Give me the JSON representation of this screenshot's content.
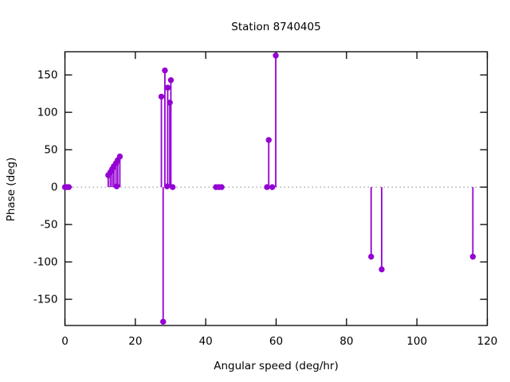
{
  "figure": {
    "background": "#ffffff"
  },
  "chart_data": {
    "type": "scatter",
    "style": "stem-impulses-with-points",
    "title": "Station 8740405",
    "xlabel": "Angular speed (deg/hr)",
    "ylabel": "Phase (deg)",
    "xlim": [
      0,
      120
    ],
    "ylim": [
      -185,
      181
    ],
    "xticks": [
      0,
      20,
      40,
      60,
      80,
      100,
      120
    ],
    "yticks": [
      -150,
      -100,
      -50,
      0,
      50,
      100,
      150
    ],
    "grid": false,
    "legend": false,
    "zero_line_style": "dotted",
    "series_color": "#9400d3",
    "axis_color": "#000000",
    "zero_line_color": "#888888",
    "points": [
      {
        "x": 0.0,
        "y": 0
      },
      {
        "x": 0.5,
        "y": 0
      },
      {
        "x": 1.1,
        "y": 0
      },
      {
        "x": 12.3,
        "y": 16
      },
      {
        "x": 12.9,
        "y": 20
      },
      {
        "x": 13.4,
        "y": 24
      },
      {
        "x": 13.9,
        "y": 28
      },
      {
        "x": 14.5,
        "y": 32
      },
      {
        "x": 15.0,
        "y": 36
      },
      {
        "x": 15.6,
        "y": 41
      },
      {
        "x": 14.7,
        "y": 1
      },
      {
        "x": 27.4,
        "y": 121
      },
      {
        "x": 27.9,
        "y": -180
      },
      {
        "x": 28.4,
        "y": 156
      },
      {
        "x": 29.0,
        "y": 1
      },
      {
        "x": 29.2,
        "y": 133
      },
      {
        "x": 29.8,
        "y": 113
      },
      {
        "x": 30.1,
        "y": 143
      },
      {
        "x": 30.6,
        "y": 0
      },
      {
        "x": 42.9,
        "y": 0
      },
      {
        "x": 43.7,
        "y": 0
      },
      {
        "x": 44.5,
        "y": 0
      },
      {
        "x": 57.4,
        "y": 0
      },
      {
        "x": 57.9,
        "y": 63
      },
      {
        "x": 58.9,
        "y": 0
      },
      {
        "x": 59.9,
        "y": 176
      },
      {
        "x": 87.0,
        "y": -93
      },
      {
        "x": 90.0,
        "y": -110
      },
      {
        "x": 115.9,
        "y": -93
      }
    ]
  }
}
